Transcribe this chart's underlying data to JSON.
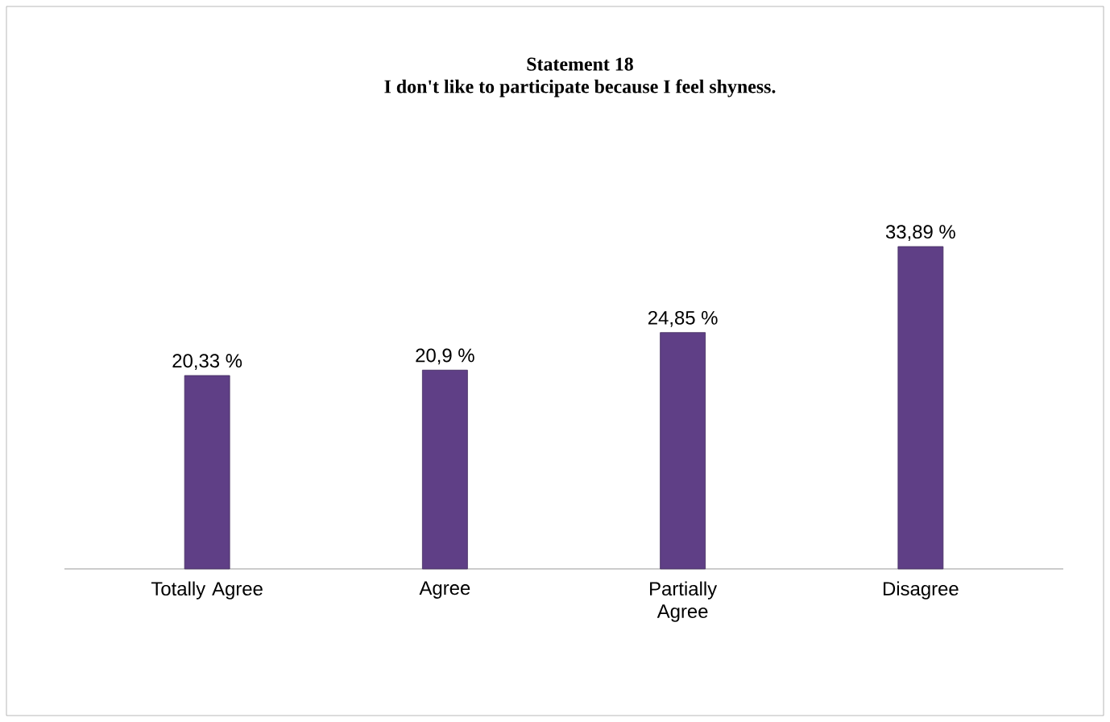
{
  "chart_data": {
    "type": "bar",
    "title": "Statement 18",
    "subtitle": "I don't like to participate because I feel shyness.",
    "categories": [
      "Totally Agree",
      "Agree",
      "Partially Agree",
      "Disagree"
    ],
    "values": [
      20.33,
      20.9,
      24.85,
      33.89
    ],
    "color": "#5f3f86",
    "value_labels": [
      "20,33 %",
      "20,9 %",
      "24,85 %",
      "33,89 %"
    ]
  }
}
